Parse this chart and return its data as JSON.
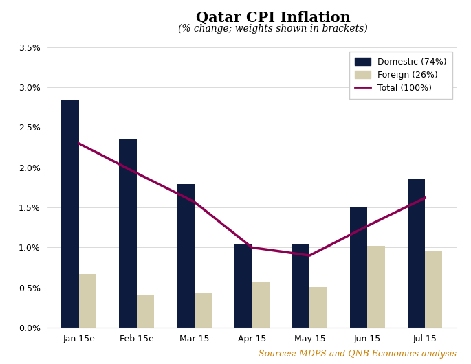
{
  "title": "Qatar CPI Inflation",
  "subtitle": "(% change; weights shown in brackets)",
  "categories": [
    "Jan 15e",
    "Feb 15e",
    "Mar 15",
    "Apr 15",
    "May 15",
    "Jun 15",
    "Jul 15"
  ],
  "domestic": [
    2.84,
    2.35,
    1.79,
    1.04,
    1.04,
    1.51,
    1.86
  ],
  "foreign": [
    0.67,
    0.4,
    0.44,
    0.57,
    0.51,
    1.02,
    0.95
  ],
  "total": [
    2.3,
    1.93,
    1.57,
    1.0,
    0.9,
    1.27,
    1.62
  ],
  "domestic_color": "#0d1b3e",
  "foreign_color": "#d4ceae",
  "total_color": "#8b0050",
  "ylim_max": 3.5,
  "yticks": [
    0.0,
    0.5,
    1.0,
    1.5,
    2.0,
    2.5,
    3.0,
    3.5
  ],
  "ytick_labels": [
    "0.0%",
    "0.5%",
    "1.0%",
    "1.5%",
    "2.0%",
    "2.5%",
    "3.0%",
    "3.5%"
  ],
  "legend_domestic": "Domestic (74%)",
  "legend_foreign": "Foreign (26%)",
  "legend_total": "Total (100%)",
  "source_text": "Sources: MDPS and QNB Economics analysis",
  "source_color": "#c8820a",
  "bar_width": 0.3,
  "title_fontsize": 15,
  "subtitle_fontsize": 10,
  "tick_fontsize": 9,
  "legend_fontsize": 9,
  "source_fontsize": 9
}
